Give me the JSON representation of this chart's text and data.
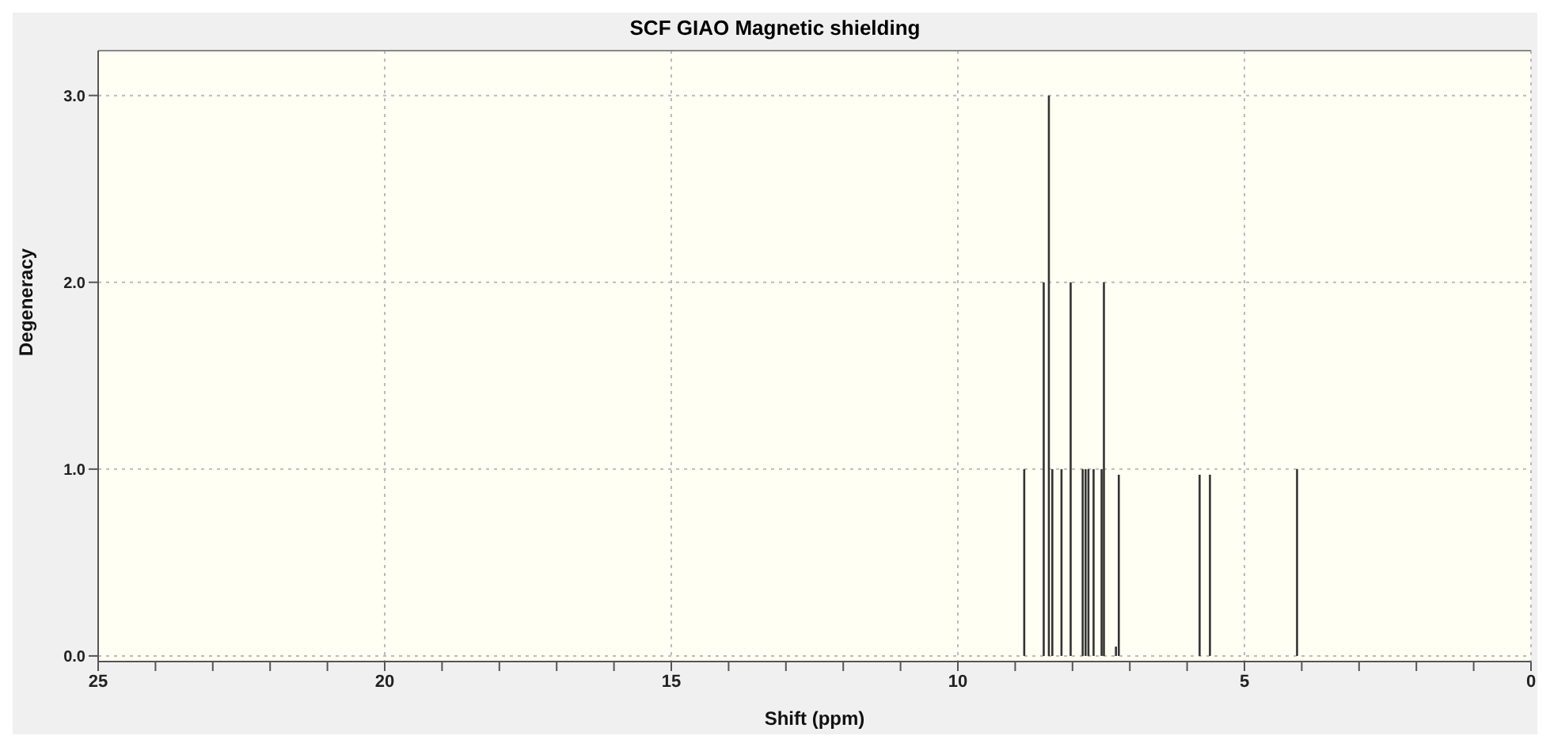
{
  "chart_data": {
    "type": "bar",
    "title": "SCF GIAO Magnetic shielding",
    "xlabel": "Shift (ppm)",
    "ylabel": "Degeneracy",
    "x": [
      8.84,
      8.5,
      8.41,
      8.35,
      8.19,
      8.03,
      7.82,
      7.77,
      7.72,
      7.63,
      7.49,
      7.45,
      7.24,
      7.19,
      5.78,
      5.6,
      4.08
    ],
    "series": [
      {
        "color": "#333333",
        "values": [
          1,
          2,
          3,
          1,
          1,
          2,
          1,
          1,
          1,
          1,
          1,
          2,
          0.05,
          0.97,
          0.97,
          0.97,
          1
        ]
      }
    ],
    "xlim": [
      25,
      0
    ],
    "xticks": [
      25,
      {
        "value": 24,
        "label": null
      },
      {
        "value": 23,
        "label": null
      },
      {
        "value": 22,
        "label": null
      },
      {
        "value": 21,
        "label": null
      },
      20,
      {
        "value": 19,
        "label": null
      },
      {
        "value": 18,
        "label": null
      },
      {
        "value": 17,
        "label": null
      },
      {
        "value": 16,
        "label": null
      },
      15,
      {
        "value": 14,
        "label": null
      },
      {
        "value": 13,
        "label": null
      },
      {
        "value": 12,
        "label": null
      },
      {
        "value": 11,
        "label": null
      },
      10,
      {
        "value": 9,
        "label": null
      },
      {
        "value": 8,
        "label": null
      },
      {
        "value": 7,
        "label": null
      },
      {
        "value": 6,
        "label": null
      },
      5,
      {
        "value": 4,
        "label": null
      },
      {
        "value": 3,
        "label": null
      },
      {
        "value": 2,
        "label": null
      },
      {
        "value": 1,
        "label": null
      },
      0
    ],
    "ylim": [
      -0.03,
      3.24
    ],
    "yticks": [
      {
        "value": 0,
        "label": "0.0"
      },
      {
        "value": 1,
        "label": "1.0"
      },
      {
        "value": 2,
        "label": "2.0"
      },
      {
        "value": 3,
        "label": "3.0"
      }
    ],
    "grid": true
  }
}
